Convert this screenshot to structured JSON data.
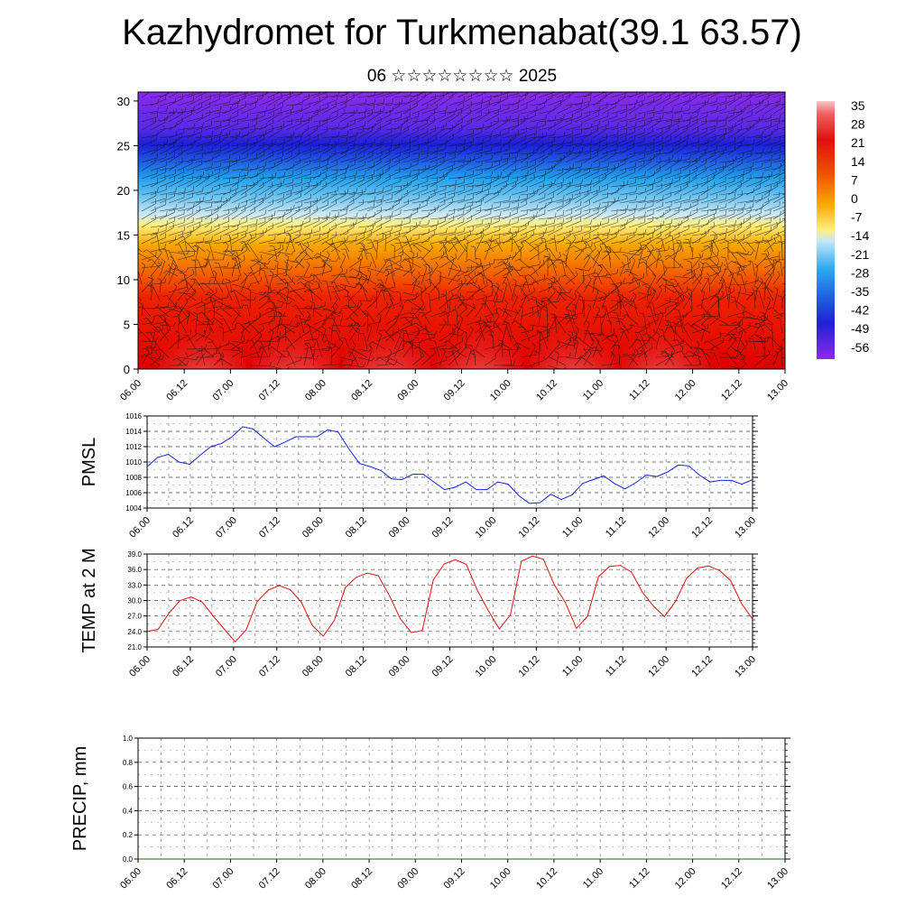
{
  "header": {
    "title": "Kazhydromet for Turkmenabat(39.1 63.57)",
    "subtitle": "06 ☆☆☆☆☆☆☆☆ 2025"
  },
  "chart_data": [
    {
      "type": "heatmap",
      "name": "vertical-cross-section",
      "title": "",
      "xlabel": "",
      "ylabel": "",
      "x_ticks": [
        "06.00",
        "06.12",
        "07.00",
        "07.12",
        "08.00",
        "08.12",
        "09.00",
        "09.12",
        "10.00",
        "10.12",
        "11.00",
        "11.12",
        "12.00",
        "12.12",
        "13.00"
      ],
      "ylim": [
        0,
        31
      ],
      "y_ticks": [
        0,
        5,
        10,
        15,
        20,
        25,
        30
      ],
      "colorbar_labels": [
        "35",
        "28",
        "21",
        "14",
        "7",
        "0",
        "-7",
        "-14",
        "-21",
        "-28",
        "-35",
        "-42",
        "-49",
        "-56"
      ],
      "colors": {
        "warm": "#e00000",
        "hot": "#f4a9a9",
        "neutral": "#fff080",
        "cold": "#2030e0",
        "coldest": "#7a22ee"
      },
      "overlay": "wind barbs"
    },
    {
      "type": "line",
      "name": "pmsl",
      "ylabel": "PMSL",
      "ylim": [
        1004,
        1016
      ],
      "y_ticks": [
        "1004",
        "1006",
        "1008",
        "1010",
        "1012",
        "1014",
        "1016"
      ],
      "x_ticks": [
        "06.00",
        "06.12",
        "07.00",
        "07.12",
        "08.00",
        "08.12",
        "09.00",
        "09.12",
        "10.00",
        "10.12",
        "11.00",
        "11.12",
        "12.00",
        "12.12",
        "13.00"
      ],
      "color": "#1020e0",
      "series": [
        {
          "values": [
            1009.4,
            1010.6,
            1011.0,
            1010.0,
            1009.7,
            1010.9,
            1012.0,
            1012.4,
            1013.3,
            1014.6,
            1014.3,
            1013.1,
            1012.0,
            1012.6,
            1013.3,
            1013.3,
            1013.3,
            1014.2,
            1013.9,
            1011.7,
            1009.8,
            1009.4,
            1008.9,
            1007.8,
            1007.7,
            1008.4,
            1008.4,
            1007.4,
            1006.4,
            1006.7,
            1007.4,
            1006.4,
            1006.4,
            1007.4,
            1007.1,
            1005.6,
            1004.6,
            1004.7,
            1005.8,
            1005.1,
            1005.7,
            1007.2,
            1007.7,
            1008.2,
            1007.2,
            1006.5,
            1007.3,
            1008.3,
            1008.1,
            1008.7,
            1009.6,
            1009.5,
            1008.3,
            1007.4,
            1007.6,
            1007.6,
            1007.1,
            1007.7
          ]
        }
      ]
    },
    {
      "type": "line",
      "name": "temp-2m",
      "ylabel": "TEMP at 2 M",
      "ylim": [
        21,
        39
      ],
      "y_ticks": [
        "21.0",
        "24.0",
        "27.0",
        "30.0",
        "33.0",
        "36.0",
        "39.0"
      ],
      "x_ticks": [
        "06.00",
        "06.12",
        "07.00",
        "07.12",
        "08.00",
        "08.12",
        "09.00",
        "09.12",
        "10.00",
        "10.12",
        "11.00",
        "11.12",
        "12.00",
        "12.12",
        "13.00"
      ],
      "color": "#e01010",
      "series": [
        {
          "values": [
            24.0,
            24.4,
            27.6,
            30.0,
            30.7,
            29.7,
            27.0,
            24.5,
            22.0,
            24.3,
            29.8,
            32.0,
            32.9,
            32.1,
            29.7,
            25.2,
            23.1,
            26.1,
            32.5,
            34.5,
            35.3,
            34.8,
            31.0,
            26.5,
            23.8,
            24.2,
            34.0,
            37.1,
            37.9,
            37.0,
            32.0,
            28.0,
            24.5,
            27.2,
            37.6,
            38.6,
            38.0,
            33.0,
            29.6,
            24.6,
            26.9,
            34.6,
            36.6,
            36.8,
            35.5,
            31.6,
            28.9,
            26.9,
            29.8,
            34.3,
            36.3,
            36.7,
            35.8,
            33.9,
            29.4,
            26.4
          ]
        }
      ]
    },
    {
      "type": "line",
      "name": "precip",
      "ylabel": "PRECIP, mm",
      "ylim": [
        0,
        1
      ],
      "y_ticks": [
        "0.0",
        "0.2",
        "0.4",
        "0.6",
        "0.8",
        "1.0"
      ],
      "x_ticks": [
        "06.00",
        "06.12",
        "07.00",
        "07.12",
        "08.00",
        "08.12",
        "09.00",
        "09.12",
        "10.00",
        "10.12",
        "11.00",
        "11.12",
        "12.00",
        "12.12",
        "13.00"
      ],
      "color": "#1a6a1a",
      "series": [
        {
          "values": [
            0,
            0,
            0,
            0,
            0,
            0,
            0,
            0,
            0,
            0,
            0,
            0,
            0,
            0,
            0,
            0,
            0,
            0,
            0,
            0,
            0,
            0,
            0,
            0,
            0,
            0,
            0,
            0,
            0,
            0,
            0,
            0,
            0,
            0,
            0,
            0,
            0,
            0,
            0,
            0,
            0,
            0,
            0,
            0,
            0,
            0,
            0,
            0,
            0,
            0,
            0,
            0,
            0,
            0,
            0,
            0,
            0
          ]
        }
      ]
    }
  ]
}
